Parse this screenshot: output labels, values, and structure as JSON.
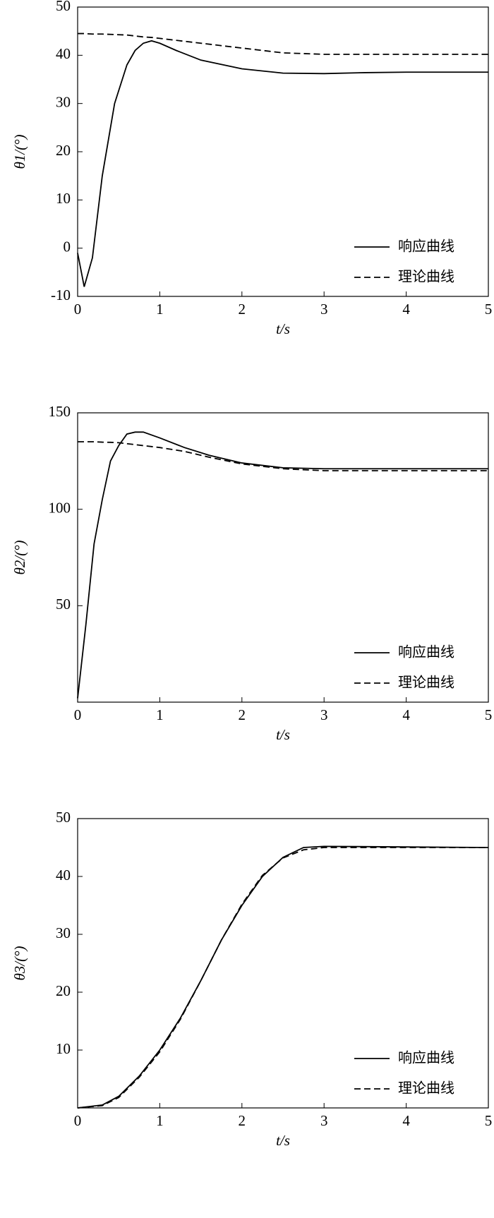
{
  "chart_data": [
    {
      "type": "line",
      "x_label": "t/s",
      "y_label": "θ1/(°)",
      "x": [
        0,
        0.08,
        0.18,
        0.3,
        0.45,
        0.6,
        0.7,
        0.8,
        0.9,
        1.0,
        1.2,
        1.5,
        2.0,
        2.5,
        3.0,
        3.5,
        4.0,
        5.0
      ],
      "series": [
        {
          "name": "响应曲线",
          "color": "#000000",
          "line_style": "solid",
          "values": [
            -1,
            -8,
            -2,
            15,
            30,
            38,
            41,
            42.5,
            43,
            42.5,
            41,
            39,
            37.2,
            36.3,
            36.2,
            36.4,
            36.5,
            36.5
          ]
        },
        {
          "name": "理论曲线",
          "color": "#000000",
          "line_style": "dashed",
          "values": [
            44.5,
            44.5,
            44.4,
            44.4,
            44.3,
            44.2,
            44,
            43.8,
            43.7,
            43.5,
            43.1,
            42.5,
            41.5,
            40.5,
            40.2,
            40.2,
            40.2,
            40.2
          ]
        }
      ],
      "xlim": [
        0,
        5
      ],
      "ylim": [
        -10,
        50
      ],
      "xticks": [
        0,
        1,
        2,
        3,
        4,
        5
      ],
      "yticks": [
        -10,
        0,
        10,
        20,
        30,
        40,
        50
      ],
      "legend": "lower right"
    },
    {
      "type": "line",
      "x_label": "t/s",
      "y_label": "θ2/(°)",
      "x": [
        0,
        0.1,
        0.2,
        0.3,
        0.4,
        0.5,
        0.6,
        0.7,
        0.8,
        1.0,
        1.3,
        1.6,
        2.0,
        2.5,
        3.0,
        5.0
      ],
      "series": [
        {
          "name": "响应曲线",
          "color": "#000000",
          "line_style": "solid",
          "values": [
            2,
            40,
            82,
            105,
            125,
            133,
            139,
            140,
            140,
            137,
            132,
            128,
            124,
            121.5,
            121,
            121
          ]
        },
        {
          "name": "理论曲线",
          "color": "#000000",
          "line_style": "dashed",
          "values": [
            135,
            135,
            135,
            134.8,
            134.7,
            134.5,
            134,
            133.5,
            133,
            132,
            130,
            127,
            123.5,
            121,
            120,
            120
          ]
        }
      ],
      "xlim": [
        0,
        5
      ],
      "ylim": [
        0,
        150
      ],
      "xticks": [
        0,
        1,
        2,
        3,
        4,
        5
      ],
      "yticks": [
        50,
        100,
        150
      ],
      "legend": "lower right"
    },
    {
      "type": "line",
      "x_label": "t/s",
      "y_label": "θ3/(°)",
      "x": [
        0,
        0.3,
        0.5,
        0.75,
        1.0,
        1.25,
        1.5,
        1.75,
        2.0,
        2.25,
        2.5,
        2.75,
        3.0,
        4.0,
        5.0
      ],
      "series": [
        {
          "name": "响应曲线",
          "color": "#000000",
          "line_style": "solid",
          "values": [
            0,
            0.5,
            2,
            5.5,
            10,
            15.5,
            22,
            29,
            35,
            40,
            43.3,
            45,
            45.2,
            45.1,
            45
          ]
        },
        {
          "name": "理论曲线",
          "color": "#000000",
          "line_style": "dashed",
          "values": [
            0,
            0.4,
            1.8,
            5.3,
            9.7,
            15.3,
            22,
            29,
            35.2,
            40.2,
            43.2,
            44.6,
            45,
            45,
            45
          ]
        }
      ],
      "xlim": [
        0,
        5
      ],
      "ylim": [
        0,
        50
      ],
      "xticks": [
        0,
        1,
        2,
        3,
        4,
        5
      ],
      "yticks": [
        10,
        20,
        30,
        40,
        50
      ],
      "legend": "lower right"
    }
  ]
}
